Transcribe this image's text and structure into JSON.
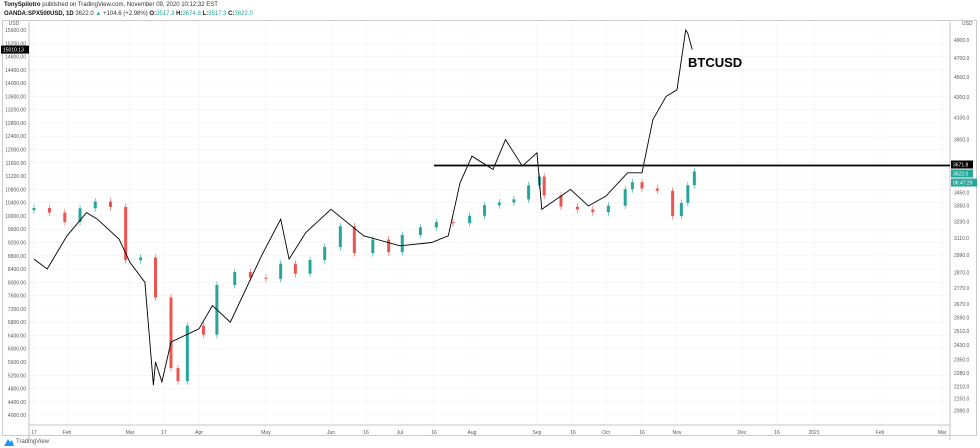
{
  "header": {
    "author": "TonySpilotro",
    "published": "published on TradingView.com, November 09, 2020 10:12:32 EST",
    "symbol": "OANDA:SPX500USD, 1D",
    "last": "3622.0",
    "change": "+104.6 (+2.98%)",
    "o_label": "O:",
    "o": "3517.3",
    "h_label": "H:",
    "h": "3674.8",
    "l_label": "L:",
    "l": "3517.3",
    "c_label": "C:",
    "c": "3622.0"
  },
  "footer": {
    "brand": "TradingView"
  },
  "annotation": "BTCUSD",
  "colors": {
    "up": "#26a69a",
    "down": "#ef5350",
    "line": "#000000",
    "grid": "#eef2f7"
  },
  "chart_data": {
    "type": "line",
    "left_axis": {
      "unit": "USD",
      "ylim": [
        4000,
        15600
      ],
      "ticks": [
        15600,
        15200,
        14800,
        14400,
        14000,
        13600,
        13200,
        12800,
        12400,
        12000,
        11600,
        11200,
        10800,
        10400,
        10000,
        9600,
        9200,
        8800,
        8400,
        8000,
        7600,
        7200,
        6800,
        6400,
        6000,
        5600,
        5200,
        4800,
        4400,
        4000
      ],
      "last_label": "15010.13"
    },
    "right_axis": {
      "unit": "USD",
      "scale": "log",
      "ticks": [
        4900,
        4700,
        4500,
        4300,
        4100,
        3900,
        3450,
        3350,
        3230,
        3110,
        2990,
        2870,
        2770,
        2670,
        2590,
        2510,
        2430,
        2350,
        2280,
        2210,
        2150,
        2090
      ],
      "labels": {
        "hline": "3671.8",
        "last": "3622.0",
        "countdown": "06:47:29"
      }
    },
    "x_ticks": [
      "17",
      "Feb",
      "Mar",
      "17",
      "Apr",
      "May",
      "Jun",
      "16",
      "Jul",
      "16",
      "Aug",
      "Sep",
      "16",
      "Oct",
      "16",
      "Nov",
      "Dec",
      "16",
      "2021",
      "Feb",
      "Mar"
    ],
    "horizontal_line": {
      "value": 3671.8,
      "from": "2020-07-16"
    },
    "series": [
      {
        "name": "BTCUSD",
        "type": "line",
        "axis": "left",
        "points": [
          [
            "2020-01-17",
            8700
          ],
          [
            "2020-01-23",
            8400
          ],
          [
            "2020-02-01",
            9400
          ],
          [
            "2020-02-10",
            10100
          ],
          [
            "2020-02-15",
            9900
          ],
          [
            "2020-02-25",
            9300
          ],
          [
            "2020-03-01",
            8600
          ],
          [
            "2020-03-08",
            8000
          ],
          [
            "2020-03-12",
            4900
          ],
          [
            "2020-03-13",
            5600
          ],
          [
            "2020-03-16",
            5000
          ],
          [
            "2020-03-20",
            6200
          ],
          [
            "2020-04-01",
            6600
          ],
          [
            "2020-04-07",
            7300
          ],
          [
            "2020-04-15",
            6800
          ],
          [
            "2020-04-29",
            8800
          ],
          [
            "2020-05-08",
            9900
          ],
          [
            "2020-05-12",
            8700
          ],
          [
            "2020-05-20",
            9500
          ],
          [
            "2020-06-01",
            10200
          ],
          [
            "2020-06-15",
            9400
          ],
          [
            "2020-07-01",
            9100
          ],
          [
            "2020-07-15",
            9200
          ],
          [
            "2020-07-22",
            9400
          ],
          [
            "2020-07-27",
            11000
          ],
          [
            "2020-08-01",
            11800
          ],
          [
            "2020-08-11",
            11400
          ],
          [
            "2020-08-17",
            12300
          ],
          [
            "2020-08-25",
            11500
          ],
          [
            "2020-09-01",
            11900
          ],
          [
            "2020-09-03",
            10200
          ],
          [
            "2020-09-15",
            10800
          ],
          [
            "2020-09-23",
            10300
          ],
          [
            "2020-10-01",
            10600
          ],
          [
            "2020-10-10",
            11300
          ],
          [
            "2020-10-16",
            11300
          ],
          [
            "2020-10-21",
            12900
          ],
          [
            "2020-10-27",
            13600
          ],
          [
            "2020-11-01",
            13800
          ],
          [
            "2020-11-05",
            15600
          ],
          [
            "2020-11-06",
            15500
          ],
          [
            "2020-11-08",
            15010
          ]
        ]
      },
      {
        "name": "OANDA:SPX500USD",
        "type": "candlestick",
        "axis": "right",
        "closes": [
          [
            "2020-01-17",
            3330
          ],
          [
            "2020-01-24",
            3295
          ],
          [
            "2020-01-31",
            3225
          ],
          [
            "2020-02-07",
            3328
          ],
          [
            "2020-02-14",
            3380
          ],
          [
            "2020-02-21",
            3338
          ],
          [
            "2020-02-28",
            2954
          ],
          [
            "2020-03-06",
            2972
          ],
          [
            "2020-03-13",
            2711
          ],
          [
            "2020-03-20",
            2305
          ],
          [
            "2020-03-23",
            2237
          ],
          [
            "2020-03-27",
            2541
          ],
          [
            "2020-04-03",
            2489
          ],
          [
            "2020-04-09",
            2790
          ],
          [
            "2020-04-17",
            2875
          ],
          [
            "2020-04-24",
            2837
          ],
          [
            "2020-05-01",
            2830
          ],
          [
            "2020-05-08",
            2930
          ],
          [
            "2020-05-15",
            2863
          ],
          [
            "2020-05-22",
            2955
          ],
          [
            "2020-05-29",
            3044
          ],
          [
            "2020-06-05",
            3193
          ],
          [
            "2020-06-11",
            3002
          ],
          [
            "2020-06-19",
            3097
          ],
          [
            "2020-06-26",
            3009
          ],
          [
            "2020-07-02",
            3130
          ],
          [
            "2020-07-10",
            3185
          ],
          [
            "2020-07-17",
            3224
          ],
          [
            "2020-07-24",
            3216
          ],
          [
            "2020-07-31",
            3271
          ],
          [
            "2020-08-07",
            3351
          ],
          [
            "2020-08-14",
            3373
          ],
          [
            "2020-08-21",
            3397
          ],
          [
            "2020-08-28",
            3508
          ],
          [
            "2020-09-02",
            3580
          ],
          [
            "2020-09-04",
            3427
          ],
          [
            "2020-09-11",
            3341
          ],
          [
            "2020-09-18",
            3319
          ],
          [
            "2020-09-25",
            3298
          ],
          [
            "2020-10-02",
            3348
          ],
          [
            "2020-10-09",
            3477
          ],
          [
            "2020-10-12",
            3534
          ],
          [
            "2020-10-16",
            3483
          ],
          [
            "2020-10-23",
            3465
          ],
          [
            "2020-10-30",
            3270
          ],
          [
            "2020-11-03",
            3369
          ],
          [
            "2020-11-06",
            3509
          ],
          [
            "2020-11-09",
            3622
          ]
        ]
      }
    ]
  }
}
